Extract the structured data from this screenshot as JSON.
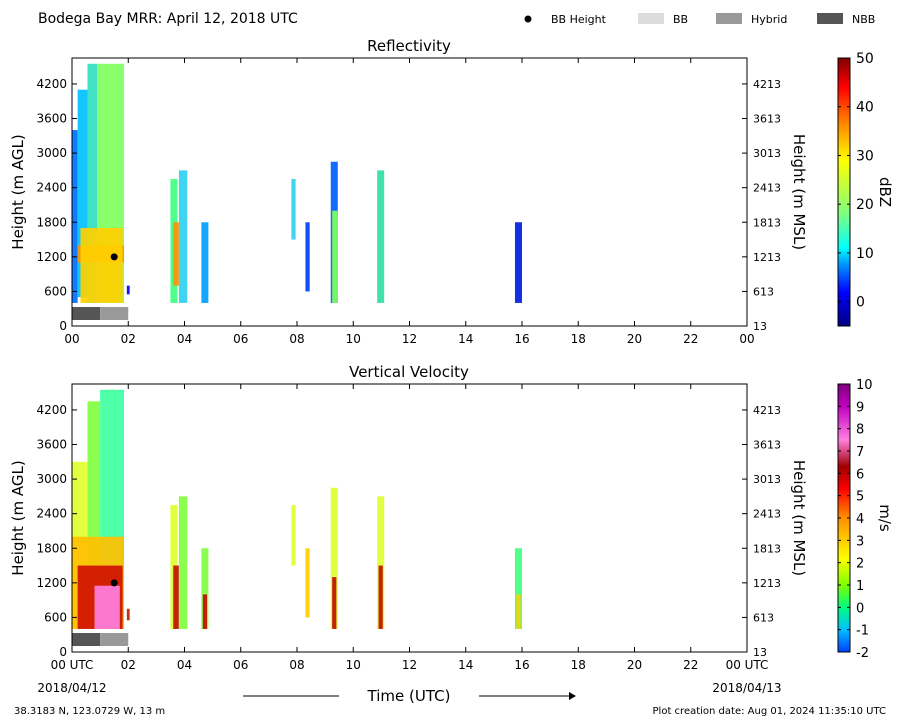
{
  "header": {
    "title": "Bodega Bay MRR:  April 12, 2018 UTC",
    "legend": [
      {
        "label": "BB Height",
        "kind": "dot",
        "color": "#000000"
      },
      {
        "label": "BB",
        "kind": "box",
        "color": "#dcdcdc"
      },
      {
        "label": "Hybrid",
        "kind": "box",
        "color": "#999999"
      },
      {
        "label": "NBB",
        "kind": "box",
        "color": "#555555"
      }
    ]
  },
  "footer": {
    "location": "38.3183 N, 123.0729 W, 13 m",
    "creation": "Plot creation date: Aug 01, 2024 11:35:10 UTC",
    "time_label": "Time (UTC)"
  },
  "axes": {
    "left_label": "Height (m AGL)",
    "right_label": "Height (m MSL)",
    "left_ticks": [
      0,
      600,
      1200,
      1800,
      2400,
      3000,
      3600,
      4200
    ],
    "right_ticks": [
      "13",
      "613",
      "1213",
      "1813",
      "2413",
      "3013",
      "3613",
      "4213"
    ],
    "x_ticks_top": [
      "00",
      "02",
      "04",
      "06",
      "08",
      "10",
      "12",
      "14",
      "16",
      "18",
      "20",
      "22",
      "00"
    ],
    "x_ticks_bottom": [
      "00 UTC",
      "02",
      "04",
      "06",
      "08",
      "10",
      "12",
      "14",
      "16",
      "18",
      "20",
      "22",
      "00 UTC"
    ],
    "x_dates": [
      "2018/04/12",
      "2018/04/13"
    ]
  },
  "chart_data": [
    {
      "type": "heatmap",
      "title": "Reflectivity",
      "xlabel": "",
      "ylabel": "Height (m AGL)",
      "xlim": [
        0,
        24
      ],
      "ylim": [
        0,
        4650
      ],
      "colorbar": {
        "label": "dBZ",
        "range": [
          -5,
          50
        ],
        "ticks": [
          0,
          10,
          20,
          30,
          40,
          50
        ],
        "stops": [
          [
            "#000080",
            -5
          ],
          [
            "#0000ff",
            2
          ],
          [
            "#00a0ff",
            8
          ],
          [
            "#00ffff",
            11
          ],
          [
            "#7fff7f",
            18
          ],
          [
            "#ffff00",
            29
          ],
          [
            "#ff8000",
            37
          ],
          [
            "#ff0000",
            44
          ],
          [
            "#800000",
            50
          ]
        ]
      },
      "bb_height": [
        {
          "x": 1.5,
          "y": 1200
        }
      ],
      "bb_bar": [
        {
          "start": 0,
          "end": 1.0,
          "type": "NBB"
        },
        {
          "start": 1.0,
          "end": 2.0,
          "type": "Hybrid"
        }
      ],
      "echoes": [
        {
          "x": [
            0.0,
            0.2
          ],
          "y": [
            400,
            3400
          ],
          "color": "#0070ff"
        },
        {
          "x": [
            0.2,
            0.55
          ],
          "y": [
            500,
            4100
          ],
          "color": "#00c0ff"
        },
        {
          "x": [
            0.55,
            0.9
          ],
          "y": [
            400,
            4550
          ],
          "color": "#30e0c0"
        },
        {
          "x": [
            0.9,
            1.85
          ],
          "y": [
            400,
            4550
          ],
          "color": "#80ff60"
        },
        {
          "x": [
            0.2,
            1.85
          ],
          "y": [
            1100,
            1400
          ],
          "color": "#ff9000"
        },
        {
          "x": [
            0.3,
            1.8
          ],
          "y": [
            400,
            1700
          ],
          "color": "#ffd000"
        },
        {
          "x": [
            1.95,
            2.05
          ],
          "y": [
            550,
            700
          ],
          "color": "#0000ff"
        },
        {
          "x": [
            3.5,
            3.75
          ],
          "y": [
            400,
            2550
          ],
          "color": "#40ff80"
        },
        {
          "x": [
            3.6,
            3.8
          ],
          "y": [
            700,
            1800
          ],
          "color": "#ff9000"
        },
        {
          "x": [
            3.8,
            4.1
          ],
          "y": [
            400,
            2700
          ],
          "color": "#30d0f0"
        },
        {
          "x": [
            4.6,
            4.85
          ],
          "y": [
            400,
            1800
          ],
          "color": "#00a0ff"
        },
        {
          "x": [
            7.8,
            7.95
          ],
          "y": [
            1500,
            2550
          ],
          "color": "#30d0f0"
        },
        {
          "x": [
            8.3,
            8.45
          ],
          "y": [
            600,
            1800
          ],
          "color": "#0040ff"
        },
        {
          "x": [
            9.2,
            9.45
          ],
          "y": [
            400,
            2850
          ],
          "color": "#0060ff"
        },
        {
          "x": [
            9.25,
            9.45
          ],
          "y": [
            400,
            2000
          ],
          "color": "#80ff60"
        },
        {
          "x": [
            10.85,
            11.1
          ],
          "y": [
            400,
            2700
          ],
          "color": "#30e0a0"
        },
        {
          "x": [
            15.75,
            16.0
          ],
          "y": [
            400,
            1800
          ],
          "color": "#0020e0"
        }
      ]
    },
    {
      "type": "heatmap",
      "title": "Vertical Velocity",
      "xlabel": "Time (UTC)",
      "ylabel": "Height (m AGL)",
      "xlim": [
        0,
        24
      ],
      "ylim": [
        0,
        4650
      ],
      "colorbar": {
        "label": "m/s",
        "range": [
          -2,
          10
        ],
        "ticks": [
          -2,
          -1,
          0,
          1,
          2,
          3,
          4,
          5,
          6,
          7,
          8,
          9,
          10
        ],
        "stops": [
          [
            "#0040ff",
            -2
          ],
          [
            "#00c0ff",
            -1
          ],
          [
            "#00ff80",
            0
          ],
          [
            "#80ff00",
            1
          ],
          [
            "#ffff00",
            2.2
          ],
          [
            "#ff9000",
            4
          ],
          [
            "#ff0000",
            5.3
          ],
          [
            "#a00000",
            6.3
          ],
          [
            "#ff80e0",
            7.5
          ],
          [
            "#c000c0",
            9
          ],
          [
            "#800080",
            10
          ]
        ]
      },
      "bb_height": [
        {
          "x": 1.5,
          "y": 1200
        }
      ],
      "bb_bar": [
        {
          "start": 0,
          "end": 1.0,
          "type": "NBB"
        },
        {
          "start": 1.0,
          "end": 2.0,
          "type": "Hybrid"
        }
      ],
      "echoes": [
        {
          "x": [
            0.0,
            0.55
          ],
          "y": [
            400,
            3300
          ],
          "color": "#e0ff30"
        },
        {
          "x": [
            0.55,
            1.0
          ],
          "y": [
            400,
            4350
          ],
          "color": "#80ff40"
        },
        {
          "x": [
            1.0,
            1.85
          ],
          "y": [
            400,
            4550
          ],
          "color": "#40ffa0"
        },
        {
          "x": [
            0.0,
            1.85
          ],
          "y": [
            400,
            2000
          ],
          "color": "#ffc000"
        },
        {
          "x": [
            0.2,
            1.8
          ],
          "y": [
            400,
            1500
          ],
          "color": "#d01000"
        },
        {
          "x": [
            0.8,
            1.7
          ],
          "y": [
            400,
            1150
          ],
          "color": "#ff80e0"
        },
        {
          "x": [
            1.95,
            2.05
          ],
          "y": [
            550,
            750
          ],
          "color": "#c02000"
        },
        {
          "x": [
            3.5,
            3.75
          ],
          "y": [
            400,
            2550
          ],
          "color": "#e0ff30"
        },
        {
          "x": [
            3.6,
            3.8
          ],
          "y": [
            400,
            1500
          ],
          "color": "#c01000"
        },
        {
          "x": [
            3.8,
            4.1
          ],
          "y": [
            400,
            2700
          ],
          "color": "#80ff40"
        },
        {
          "x": [
            4.6,
            4.85
          ],
          "y": [
            400,
            1800
          ],
          "color": "#80ff40"
        },
        {
          "x": [
            4.65,
            4.8
          ],
          "y": [
            400,
            1000
          ],
          "color": "#c01000"
        },
        {
          "x": [
            7.8,
            7.95
          ],
          "y": [
            1500,
            2550
          ],
          "color": "#e0ff30"
        },
        {
          "x": [
            8.3,
            8.45
          ],
          "y": [
            600,
            1800
          ],
          "color": "#ffd000"
        },
        {
          "x": [
            9.2,
            9.45
          ],
          "y": [
            400,
            2850
          ],
          "color": "#e0ff30"
        },
        {
          "x": [
            9.25,
            9.4
          ],
          "y": [
            400,
            1300
          ],
          "color": "#c01000"
        },
        {
          "x": [
            10.85,
            11.1
          ],
          "y": [
            400,
            2700
          ],
          "color": "#e0ff30"
        },
        {
          "x": [
            10.9,
            11.05
          ],
          "y": [
            400,
            1500
          ],
          "color": "#c01000"
        },
        {
          "x": [
            15.75,
            16.0
          ],
          "y": [
            400,
            1800
          ],
          "color": "#40ff80"
        },
        {
          "x": [
            15.8,
            15.95
          ],
          "y": [
            400,
            1000
          ],
          "color": "#ffd000"
        }
      ]
    }
  ]
}
